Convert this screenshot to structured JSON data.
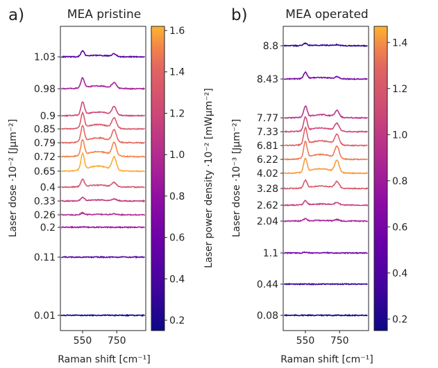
{
  "figure": {
    "shared_xlabel": "Raman shift [cm⁻¹]"
  },
  "chart_data": [
    {
      "type": "line",
      "panel_label": "a)",
      "title": "MEA pristine",
      "xlabel": "Raman shift [cm⁻¹]",
      "ylabel": "Laser dose ·10⁻² [Jμm⁻²]",
      "x_ticks": [
        550,
        750
      ],
      "xlim": [
        420,
        920
      ],
      "colorbar": {
        "label": "Laser power density ·10⁻² [mWμm⁻²]",
        "ticks": [
          0.2,
          0.4,
          0.6,
          0.8,
          1.0,
          1.2,
          1.4,
          1.6
        ],
        "range": [
          0.15,
          1.62
        ],
        "colormap": "plasma"
      },
      "series": [
        {
          "dose": "0.01",
          "power": 0.15,
          "h550": 0.0,
          "h740": 0.0
        },
        {
          "dose": "0.11",
          "power": 0.45,
          "h550": 0.0,
          "h740": 0.0
        },
        {
          "dose": "0.2",
          "power": 0.85,
          "h550": 0.1,
          "h740": 0.0
        },
        {
          "dose": "0.26",
          "power": 1.0,
          "h550": 0.4,
          "h740": 0.2
        },
        {
          "dose": "0.33",
          "power": 1.1,
          "h550": 0.8,
          "h740": 0.4
        },
        {
          "dose": "0.4",
          "power": 1.3,
          "h550": 1.6,
          "h740": 0.9
        },
        {
          "dose": "0.65",
          "power": 1.6,
          "h550": 3.5,
          "h740": 2.8
        },
        {
          "dose": "0.72",
          "power": 1.52,
          "h550": 3.4,
          "h740": 2.8
        },
        {
          "dose": "0.79",
          "power": 1.42,
          "h550": 3.4,
          "h740": 2.6
        },
        {
          "dose": "0.85",
          "power": 1.32,
          "h550": 3.2,
          "h740": 2.2
        },
        {
          "dose": "0.9",
          "power": 1.2,
          "h550": 2.8,
          "h740": 1.8
        },
        {
          "dose": "0.98",
          "power": 0.92,
          "h550": 2.2,
          "h740": 1.2
        },
        {
          "dose": "1.03",
          "power": 0.45,
          "h550": 1.2,
          "h740": 0.6
        }
      ]
    },
    {
      "type": "line",
      "panel_label": "b)",
      "title": "MEA operated",
      "xlabel": "Raman shift [cm⁻¹]",
      "ylabel": "Laser dose ·10⁻³ [Jμm⁻²]",
      "x_ticks": [
        550,
        750
      ],
      "xlim": [
        420,
        920
      ],
      "colorbar": {
        "label": "Laser power density ·10⁻² [mWμm⁻²]",
        "ticks": [
          0.2,
          0.4,
          0.6,
          0.8,
          1.0,
          1.2,
          1.4
        ],
        "range": [
          0.15,
          1.47
        ],
        "colormap": "plasma"
      },
      "series": [
        {
          "dose": "0.08",
          "power": 0.15,
          "h550": 0.0,
          "h740": 0.0
        },
        {
          "dose": "0.44",
          "power": 0.3,
          "h550": 0.0,
          "h740": 0.0
        },
        {
          "dose": "1.1",
          "power": 0.55,
          "h550": 0.15,
          "h740": 0.0
        },
        {
          "dose": "2.04",
          "power": 0.85,
          "h550": 0.5,
          "h740": 0.3
        },
        {
          "dose": "2.62",
          "power": 1.05,
          "h550": 0.9,
          "h740": 0.5
        },
        {
          "dose": "3.28",
          "power": 1.2,
          "h550": 1.6,
          "h740": 1.4
        },
        {
          "dose": "4.02",
          "power": 1.42,
          "h550": 3.0,
          "h740": 2.6
        },
        {
          "dose": "6.22",
          "power": 1.35,
          "h550": 3.6,
          "h740": 2.6
        },
        {
          "dose": "6.81",
          "power": 1.25,
          "h550": 3.6,
          "h740": 2.2
        },
        {
          "dose": "7.33",
          "power": 1.1,
          "h550": 3.0,
          "h740": 1.6
        },
        {
          "dose": "7.77",
          "power": 0.95,
          "h550": 2.4,
          "h740": 1.4
        },
        {
          "dose": "8.43",
          "power": 0.6,
          "h550": 1.4,
          "h740": 0.4
        },
        {
          "dose": "8.8",
          "power": 0.25,
          "h550": 0.5,
          "h740": 0.2
        }
      ]
    }
  ]
}
